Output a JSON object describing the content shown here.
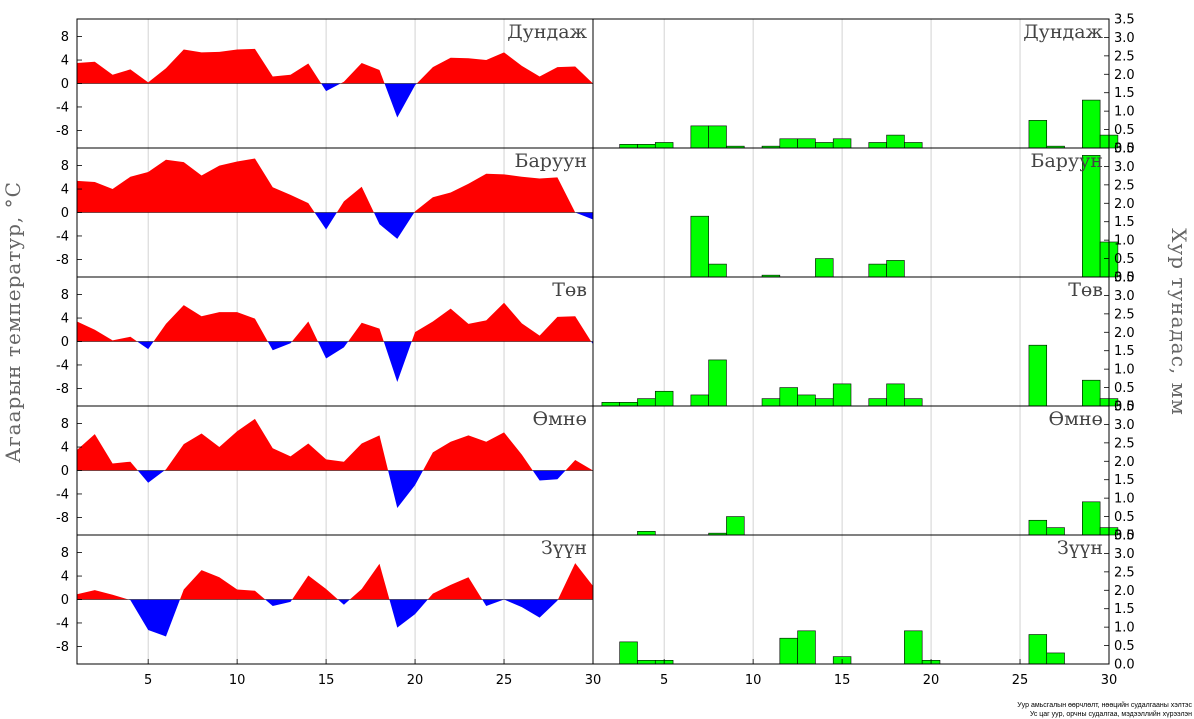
{
  "chart_data": {
    "type": "area+bar",
    "ylabel_left": "Агаарын температур, °C",
    "ylabel_right": "Хур тунадас, мм",
    "x_ticks": [
      5,
      10,
      15,
      20,
      25,
      30
    ],
    "temp_ylim": [
      -11,
      11
    ],
    "temp_ticks": [
      -8,
      -4,
      0,
      4,
      8
    ],
    "precip_ylim": [
      0,
      3.5
    ],
    "precip_ticks": [
      "0.0",
      "0.5",
      "1.0",
      "1.5",
      "2.0",
      "2.5",
      "3.0",
      "3.5"
    ],
    "colors": {
      "positive": "#ff0000",
      "negative": "#0000ff",
      "bar": "#00ff00",
      "bar_edge": "#000000"
    },
    "panels": [
      {
        "name": "Дундаж",
        "temperature": [
          3.5,
          3.7,
          1.5,
          2.4,
          0.2,
          2.6,
          5.8,
          5.3,
          5.4,
          5.8,
          5.9,
          1.2,
          1.5,
          3.4,
          -1.3,
          0.3,
          3.5,
          2.3,
          -5.8,
          -0.3,
          2.8,
          4.4,
          4.3,
          4.0,
          5.3,
          3.0,
          1.2,
          2.8,
          2.9,
          0.0
        ],
        "precipitation": [
          0,
          0,
          0.1,
          0.1,
          0.15,
          0,
          0.6,
          0.6,
          0.05,
          0,
          0.05,
          0.25,
          0.25,
          0.15,
          0.25,
          0,
          0.15,
          0.35,
          0.15,
          0,
          0,
          0,
          0,
          0,
          0,
          0.75,
          0.05,
          0,
          1.3,
          0.35
        ]
      },
      {
        "name": "Баруун",
        "temperature": [
          5.4,
          5.2,
          4.0,
          6.1,
          6.9,
          9.0,
          8.6,
          6.3,
          8.0,
          8.7,
          9.2,
          4.3,
          3.0,
          1.6,
          -2.9,
          1.9,
          4.4,
          -2.0,
          -4.5,
          0.2,
          2.6,
          3.4,
          4.9,
          6.6,
          6.5,
          6.1,
          5.8,
          6.0,
          0.0,
          -1.2
        ],
        "precipitation": [
          0,
          0,
          0,
          0,
          0,
          0,
          1.65,
          0.35,
          0,
          0,
          0.05,
          0,
          0,
          0.5,
          0,
          0,
          0.35,
          0.45,
          0,
          0,
          0,
          0,
          0,
          0,
          0,
          0,
          0,
          0,
          3.3,
          0.95
        ]
      },
      {
        "name": "Төв",
        "temperature": [
          3.4,
          2.0,
          0.2,
          0.8,
          -1.3,
          3.0,
          6.2,
          4.3,
          5.0,
          5.0,
          3.9,
          -1.5,
          -0.3,
          3.4,
          -2.9,
          -1.0,
          3.2,
          2.2,
          -6.9,
          1.6,
          3.4,
          5.6,
          3.0,
          3.6,
          6.6,
          3.1,
          1.0,
          4.2,
          4.3,
          -0.5
        ],
        "precipitation": [
          0,
          0.1,
          0.1,
          0.2,
          0.4,
          0,
          0.3,
          1.25,
          0,
          0,
          0.2,
          0.5,
          0.3,
          0.2,
          0.6,
          0,
          0.2,
          0.6,
          0.2,
          0,
          0,
          0,
          0,
          0,
          0,
          1.65,
          0,
          0,
          0.7,
          0.2
        ]
      },
      {
        "name": "Өмнө",
        "temperature": [
          3.5,
          6.2,
          1.2,
          1.5,
          -2.1,
          0.2,
          4.5,
          6.3,
          4.0,
          6.7,
          8.8,
          3.8,
          2.4,
          4.6,
          1.9,
          1.5,
          4.6,
          6.0,
          -6.4,
          -2.5,
          3.1,
          4.9,
          6.0,
          4.9,
          6.5,
          2.7,
          -1.7,
          -1.5,
          1.8,
          0.0
        ],
        "precipitation": [
          0,
          0,
          0,
          0.1,
          0,
          0,
          0,
          0.05,
          0.5,
          0,
          0,
          0,
          0,
          0,
          0,
          0,
          0,
          0,
          0,
          0,
          0,
          0,
          0,
          0,
          0,
          0.4,
          0.2,
          0,
          0.9,
          0.2
        ]
      },
      {
        "name": "Зүүн",
        "temperature": [
          0.9,
          1.6,
          0.8,
          -0.1,
          -5.2,
          -6.3,
          1.7,
          5.0,
          3.8,
          1.7,
          1.5,
          -1.1,
          -0.4,
          4.1,
          1.8,
          -0.9,
          1.8,
          6.1,
          -4.8,
          -2.5,
          1.0,
          2.5,
          3.8,
          -1.1,
          0.0,
          -1.3,
          -3.1,
          -0.2,
          6.2,
          2.3
        ],
        "precipitation": [
          0,
          0,
          0.6,
          0.1,
          0.1,
          0,
          0,
          0,
          0,
          0,
          0,
          0.7,
          0.9,
          0,
          0.2,
          0,
          0,
          0,
          0.9,
          0.1,
          0,
          0,
          0,
          0,
          0,
          0.8,
          0.3,
          0,
          0,
          0
        ]
      }
    ]
  },
  "credit": {
    "line1": "Уур амьсгалын өөрчлөлт, нөөцийн судалгааны хэлтэс",
    "line2": "Ус цаг уур, орчны судалгаа, мэдээллийн хүрээлэн"
  }
}
